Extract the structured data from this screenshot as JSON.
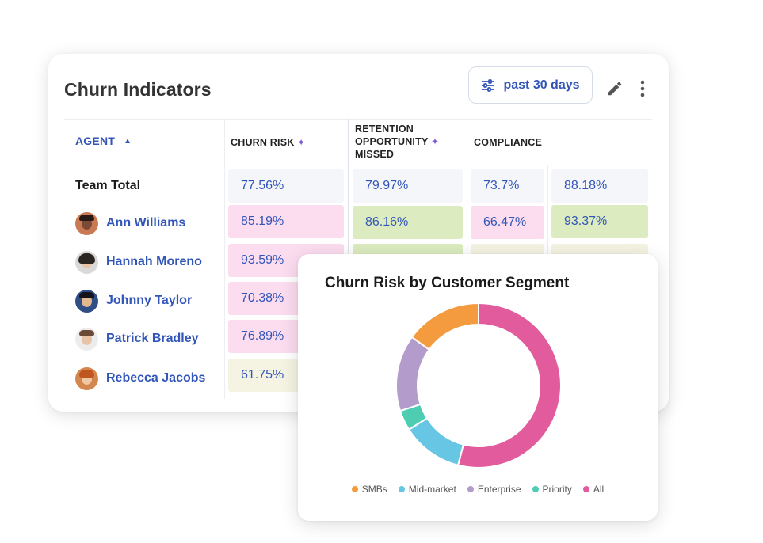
{
  "card": {
    "title": "Churn Indicators",
    "filter_label": "past 30 days"
  },
  "table": {
    "headers": {
      "agent": "AGENT",
      "sort_indicator": "▲",
      "churn_risk": "CHURN RISK",
      "retention_line1": "RETENTION",
      "retention_line2": "OPPORTUNITY",
      "retention_line3": "MISSED",
      "compliance": "COMPLIANCE",
      "ai_spark": "✦"
    },
    "team_total": {
      "label": "Team Total",
      "values": [
        "77.56%",
        "79.97%",
        "73.7%",
        "88.18%"
      ]
    },
    "agents": [
      {
        "name": "Ann Williams",
        "values": [
          "85.19%",
          "86.16%",
          "66.47%",
          "93.37%"
        ]
      },
      {
        "name": "Hannah Moreno",
        "values": [
          "93.59%",
          "",
          "",
          ""
        ]
      },
      {
        "name": "Johnny Taylor",
        "values": [
          "70.38%",
          "",
          "",
          ""
        ]
      },
      {
        "name": "Patrick Bradley",
        "values": [
          "76.89%",
          "",
          "",
          ""
        ]
      },
      {
        "name": "Rebecca Jacobs",
        "values": [
          "61.75%",
          "",
          "",
          ""
        ]
      }
    ]
  },
  "colors": {
    "accent": "#3155b8",
    "neutral_cell": "#f5f6f9",
    "pink_cell": "#fcdcef",
    "green_cell": "#dcecc0",
    "cream_cell": "#f5f4e3"
  },
  "chart_data": {
    "type": "pie",
    "title": "Churn Risk by Customer Segment",
    "donut": true,
    "categories": [
      "SMBs",
      "Mid-market",
      "Enterprise",
      "Priority",
      "All"
    ],
    "values": [
      15,
      12,
      15,
      4,
      54
    ],
    "colors": [
      "#f49b3f",
      "#66c6e3",
      "#b39bcc",
      "#4fcdb3",
      "#e25b9c"
    ],
    "legend": "bottom"
  }
}
